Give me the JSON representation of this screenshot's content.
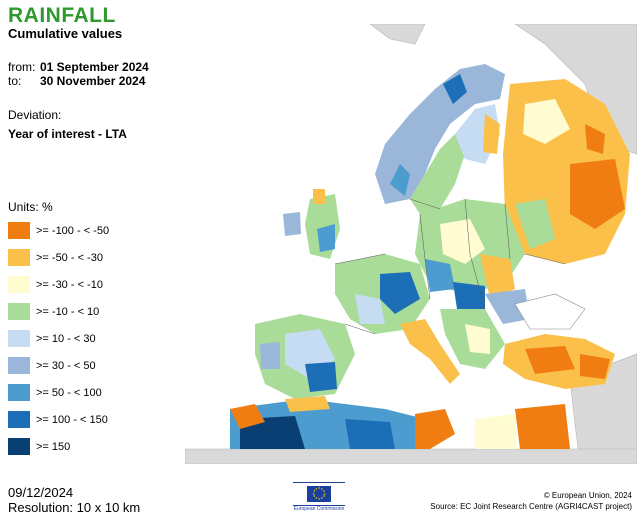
{
  "header": {
    "title": "RAINFALL",
    "subtitle": "Cumulative values",
    "from_label": "from:",
    "from_value": "01 September 2024",
    "to_label": "to:",
    "to_value": "30 November 2024",
    "deviation_label": "Deviation:",
    "deviation_value": "Year of interest - LTA"
  },
  "legend": {
    "units": "Units: %",
    "items": [
      {
        "label": ">= -100 - < -50",
        "color": "#f07d12"
      },
      {
        "label": ">= -50 - < -30",
        "color": "#fbc04a"
      },
      {
        "label": ">= -30 - < -10",
        "color": "#fefcd0"
      },
      {
        "label": ">= -10 - < 10",
        "color": "#a8dc98"
      },
      {
        "label": ">= 10 - < 30",
        "color": "#c6dcf2"
      },
      {
        "label": ">= 30 - < 50",
        "color": "#9ab6d9"
      },
      {
        "label": ">= 50 - < 100",
        "color": "#4c9cd0"
      },
      {
        "label": ">= 100 - < 150",
        "color": "#1c6fb6"
      },
      {
        "label": ">= 150",
        "color": "#0a3f73"
      }
    ]
  },
  "footer": {
    "date": "09/12/2024",
    "resolution": "Resolution: 10 x 10 km",
    "copyright": "© European Union, 2024",
    "source": "Source: EC Joint Research Centre (AGRI4CAST project)",
    "logo_caption": "European Commission"
  }
}
